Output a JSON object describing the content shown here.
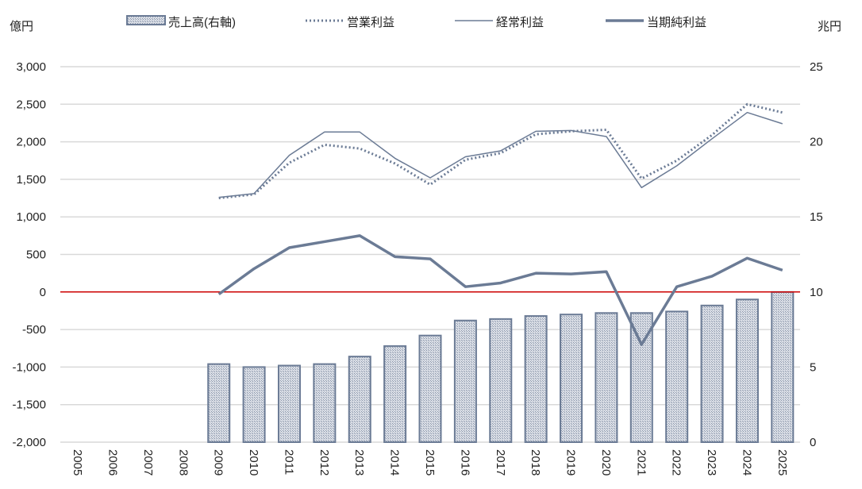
{
  "chart_data": {
    "type": "bar+line",
    "left_unit": "億円",
    "right_unit": "兆円",
    "ylim_left": [
      -2000,
      3000
    ],
    "ylim_right": [
      0,
      25
    ],
    "yticks_left": [
      "3,000",
      "2,500",
      "2,000",
      "1,500",
      "1,000",
      "500",
      "0",
      "-500",
      "-1,000",
      "-1,500",
      "-2,000"
    ],
    "yticks_right": [
      "25",
      "20",
      "15",
      "10",
      "5",
      "0"
    ],
    "grid": true,
    "legend_position": "top",
    "categories": [
      "2005",
      "2006",
      "2007",
      "2008",
      "2009",
      "2010",
      "2011",
      "2012",
      "2013",
      "2014",
      "2015",
      "2016",
      "2017",
      "2018",
      "2019",
      "2020",
      "2021",
      "2022",
      "2023",
      "2024",
      "2025"
    ],
    "series": [
      {
        "name": "売上高(右軸)",
        "type": "bar",
        "axis": "right",
        "color": "#6b7b95",
        "values": [
          null,
          null,
          null,
          null,
          5.2,
          5.0,
          5.1,
          5.2,
          5.7,
          6.4,
          7.1,
          8.1,
          8.2,
          8.4,
          8.5,
          8.6,
          8.6,
          8.7,
          9.1,
          9.5,
          10.0
        ]
      },
      {
        "name": "営業利益",
        "type": "line",
        "style": "dotted",
        "axis": "left",
        "color": "#6b7b95",
        "values": [
          null,
          null,
          null,
          null,
          1250,
          1300,
          1720,
          1960,
          1910,
          1710,
          1430,
          1760,
          1850,
          2100,
          2140,
          2160,
          1510,
          1750,
          2090,
          2500,
          2390
        ]
      },
      {
        "name": "経常利益",
        "type": "line",
        "style": "thin",
        "axis": "left",
        "color": "#6b7b95",
        "values": [
          null,
          null,
          null,
          null,
          1260,
          1310,
          1820,
          2130,
          2130,
          1780,
          1520,
          1800,
          1880,
          2140,
          2150,
          2070,
          1390,
          1680,
          2040,
          2390,
          2240
        ]
      },
      {
        "name": "当期純利益",
        "type": "line",
        "style": "thick",
        "axis": "left",
        "color": "#6b7b95",
        "values": [
          null,
          null,
          null,
          null,
          -30,
          310,
          590,
          670,
          750,
          470,
          440,
          70,
          120,
          250,
          240,
          270,
          -700,
          70,
          210,
          450,
          290
        ]
      }
    ],
    "zero_line_color": "#cc0000",
    "negative_tick_color": "#c00000"
  }
}
